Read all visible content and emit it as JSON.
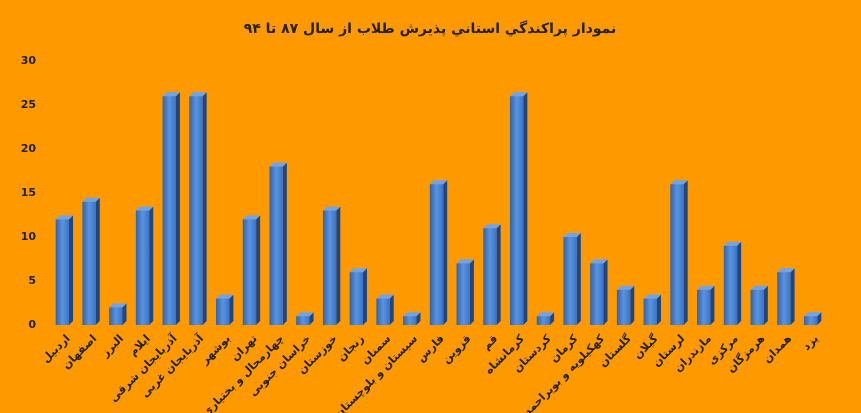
{
  "chart_data": {
    "type": "bar",
    "title": "نمودار پراکندگي استاني پذيرش طلاب از سال ۸۷ تا ۹۴",
    "categories": [
      "اردبیل",
      "اصفهان",
      "البرز",
      "ایلام",
      "آذربایجان شرقی",
      "آذربایجان غربی",
      "بوشهر",
      "تهران",
      "چهارمحال و بختیاری",
      "خراسان جنوبی",
      "خوزستان",
      "زنجان",
      "سمنان",
      "سیستان و بلوچستان",
      "فارس",
      "قزوین",
      "قم",
      "کرمانشاه",
      "کردستان",
      "کرمان",
      "کهکیلویه و بویراحمد",
      "گلستان",
      "گیلان",
      "لرستان",
      "مازندران",
      "مرکزی",
      "هرمزگان",
      "همدان",
      "یزد"
    ],
    "values": [
      12,
      14,
      2,
      13,
      26,
      26,
      3,
      12,
      18,
      1,
      13,
      6,
      3,
      1,
      16,
      7,
      11,
      26,
      1,
      10,
      7,
      4,
      3,
      16,
      4,
      9,
      4,
      6,
      1
    ],
    "color": "#3b74c6",
    "ylim": [
      0,
      30
    ],
    "yticks": [
      0,
      5,
      10,
      15,
      20,
      25,
      30
    ],
    "grid": false
  }
}
